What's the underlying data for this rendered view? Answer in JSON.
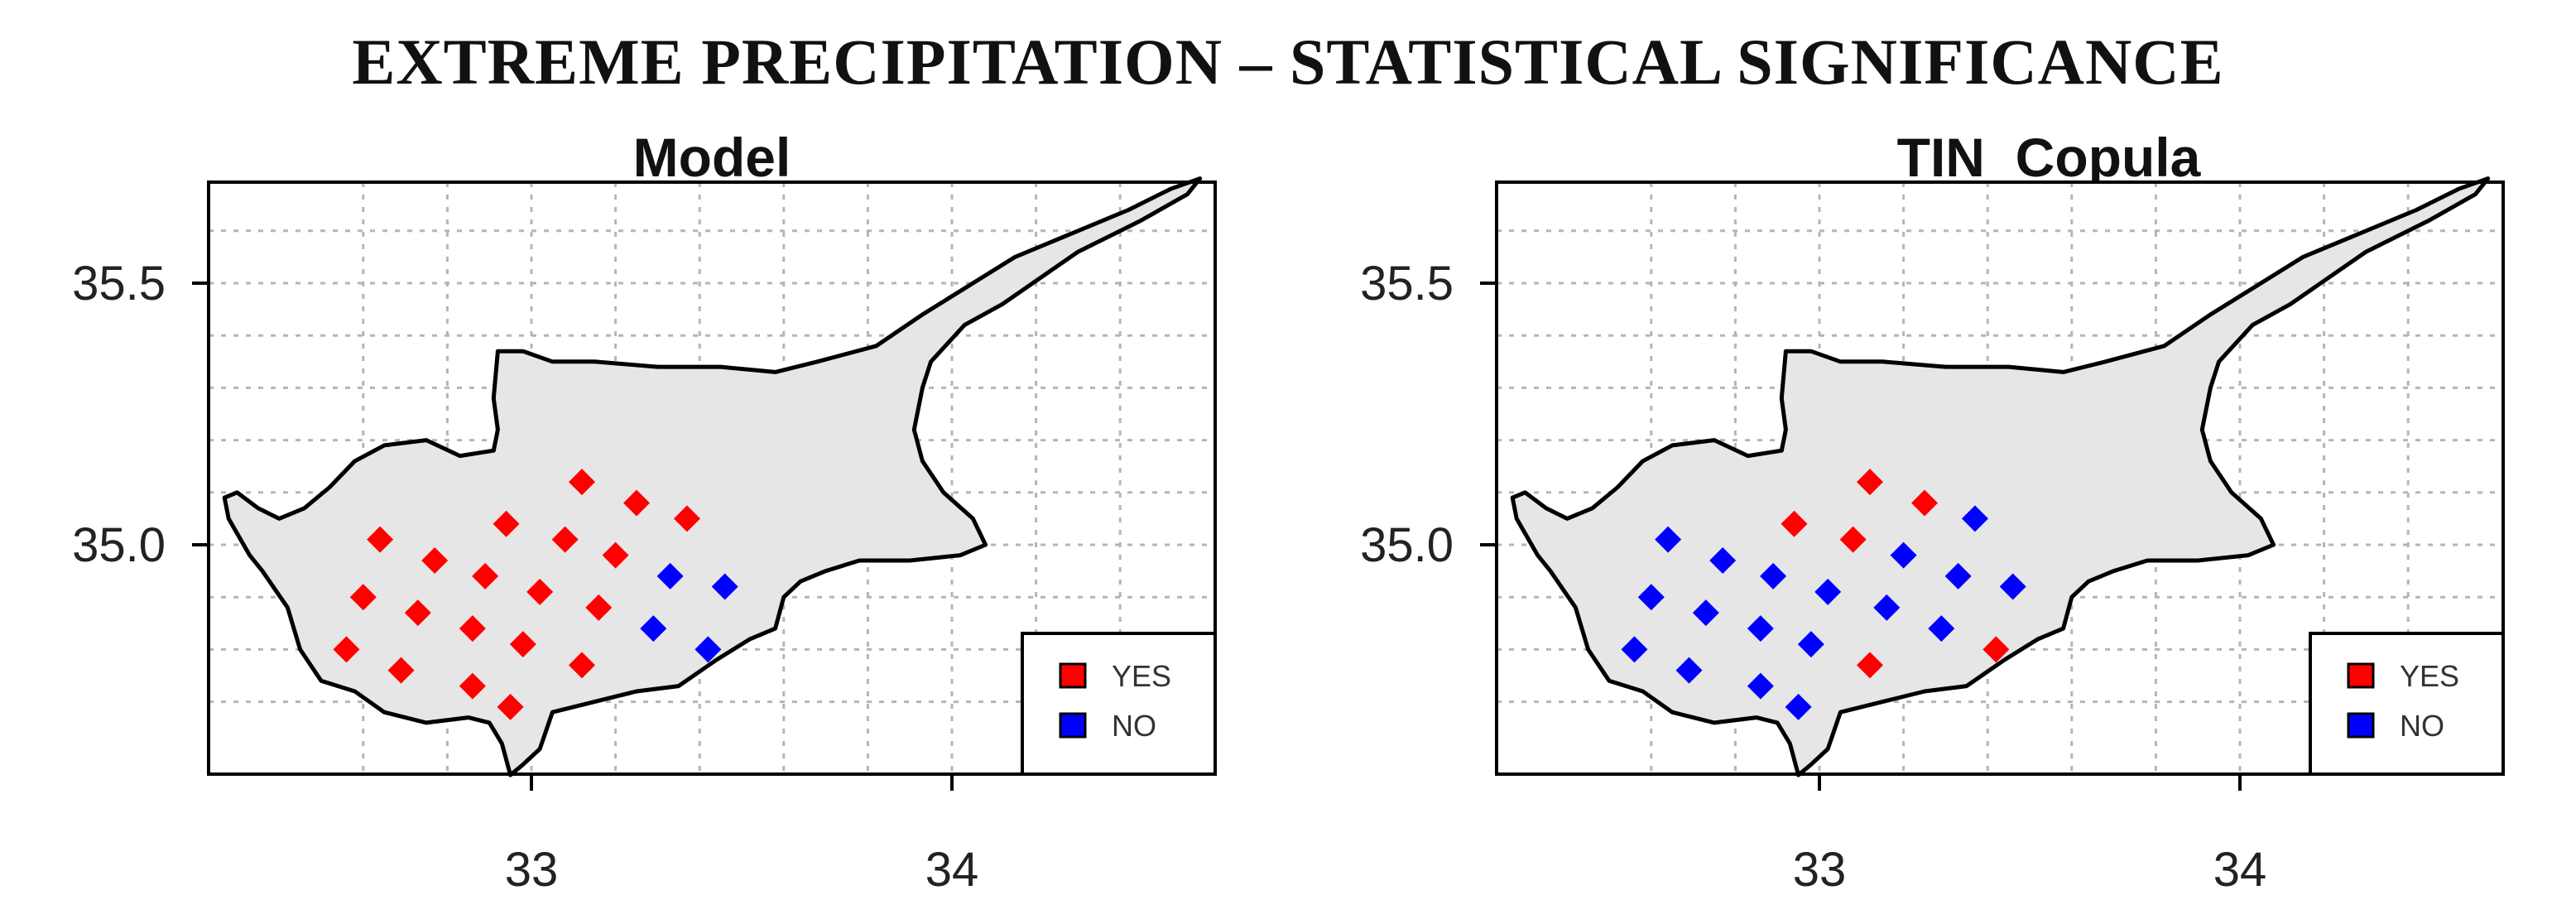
{
  "title": "EXTREME PRECIPITATION – STATISTICAL SIGNIFICANCE",
  "colors": {
    "yes": "#ff0000",
    "no": "#0000ff",
    "land": "#e6e6e6",
    "grid": "#b5b5b5"
  },
  "panels": [
    {
      "title": "Model",
      "xticks": [
        "33",
        "34"
      ],
      "yticks": [
        "35.5",
        "35.0"
      ],
      "legend": [
        "YES",
        "NO"
      ],
      "stations": [
        {
          "lon": 32.64,
          "lat": 35.01,
          "sig": "YES"
        },
        {
          "lon": 32.6,
          "lat": 34.9,
          "sig": "YES"
        },
        {
          "lon": 32.56,
          "lat": 34.8,
          "sig": "YES"
        },
        {
          "lon": 32.77,
          "lat": 34.97,
          "sig": "YES"
        },
        {
          "lon": 32.73,
          "lat": 34.87,
          "sig": "YES"
        },
        {
          "lon": 32.69,
          "lat": 34.76,
          "sig": "YES"
        },
        {
          "lon": 32.86,
          "lat": 34.73,
          "sig": "YES"
        },
        {
          "lon": 32.86,
          "lat": 34.84,
          "sig": "YES"
        },
        {
          "lon": 32.89,
          "lat": 34.94,
          "sig": "YES"
        },
        {
          "lon": 32.94,
          "lat": 35.04,
          "sig": "YES"
        },
        {
          "lon": 32.95,
          "lat": 34.69,
          "sig": "YES"
        },
        {
          "lon": 32.98,
          "lat": 34.81,
          "sig": "YES"
        },
        {
          "lon": 33.02,
          "lat": 34.91,
          "sig": "YES"
        },
        {
          "lon": 33.08,
          "lat": 35.01,
          "sig": "YES"
        },
        {
          "lon": 33.12,
          "lat": 35.12,
          "sig": "YES"
        },
        {
          "lon": 33.12,
          "lat": 34.77,
          "sig": "YES"
        },
        {
          "lon": 33.16,
          "lat": 34.88,
          "sig": "YES"
        },
        {
          "lon": 33.2,
          "lat": 34.98,
          "sig": "YES"
        },
        {
          "lon": 33.25,
          "lat": 35.08,
          "sig": "YES"
        },
        {
          "lon": 33.37,
          "lat": 35.05,
          "sig": "YES"
        },
        {
          "lon": 33.33,
          "lat": 34.94,
          "sig": "NO"
        },
        {
          "lon": 33.29,
          "lat": 34.84,
          "sig": "NO"
        },
        {
          "lon": 33.46,
          "lat": 34.92,
          "sig": "NO"
        },
        {
          "lon": 33.42,
          "lat": 34.8,
          "sig": "NO"
        }
      ]
    },
    {
      "title": "TIN_Copula",
      "xticks": [
        "33",
        "34"
      ],
      "yticks": [
        "35.5",
        "35.0"
      ],
      "legend": [
        "YES",
        "NO"
      ],
      "stations": [
        {
          "lon": 32.64,
          "lat": 35.01,
          "sig": "NO"
        },
        {
          "lon": 32.6,
          "lat": 34.9,
          "sig": "NO"
        },
        {
          "lon": 32.56,
          "lat": 34.8,
          "sig": "NO"
        },
        {
          "lon": 32.77,
          "lat": 34.97,
          "sig": "NO"
        },
        {
          "lon": 32.73,
          "lat": 34.87,
          "sig": "NO"
        },
        {
          "lon": 32.69,
          "lat": 34.76,
          "sig": "NO"
        },
        {
          "lon": 32.86,
          "lat": 34.73,
          "sig": "NO"
        },
        {
          "lon": 32.86,
          "lat": 34.84,
          "sig": "NO"
        },
        {
          "lon": 32.89,
          "lat": 34.94,
          "sig": "NO"
        },
        {
          "lon": 32.94,
          "lat": 35.04,
          "sig": "YES"
        },
        {
          "lon": 32.95,
          "lat": 34.69,
          "sig": "NO"
        },
        {
          "lon": 32.98,
          "lat": 34.81,
          "sig": "NO"
        },
        {
          "lon": 33.02,
          "lat": 34.91,
          "sig": "NO"
        },
        {
          "lon": 33.08,
          "lat": 35.01,
          "sig": "YES"
        },
        {
          "lon": 33.12,
          "lat": 35.12,
          "sig": "YES"
        },
        {
          "lon": 33.12,
          "lat": 34.77,
          "sig": "YES"
        },
        {
          "lon": 33.16,
          "lat": 34.88,
          "sig": "NO"
        },
        {
          "lon": 33.2,
          "lat": 34.98,
          "sig": "NO"
        },
        {
          "lon": 33.25,
          "lat": 35.08,
          "sig": "YES"
        },
        {
          "lon": 33.37,
          "lat": 35.05,
          "sig": "NO"
        },
        {
          "lon": 33.33,
          "lat": 34.94,
          "sig": "NO"
        },
        {
          "lon": 33.29,
          "lat": 34.84,
          "sig": "NO"
        },
        {
          "lon": 33.46,
          "lat": 34.92,
          "sig": "NO"
        },
        {
          "lon": 33.42,
          "lat": 34.8,
          "sig": "YES"
        }
      ]
    }
  ]
}
